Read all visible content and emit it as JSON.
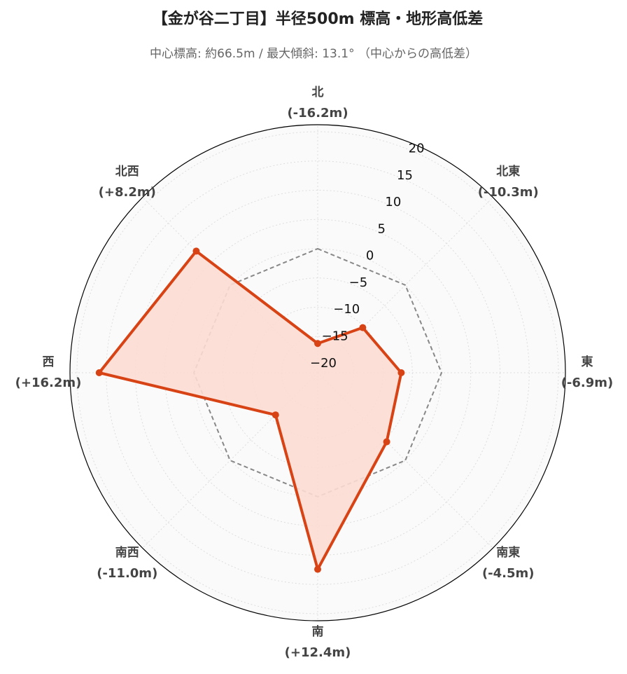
{
  "chart_data": {
    "type": "radar",
    "title": "【金が谷二丁目】半径500m 標高・地形高低差",
    "subtitle": "中心標高: 約66.5m / 最大傾斜: 13.1° （中心からの高低差）",
    "categories": [
      "北",
      "北東",
      "東",
      "南東",
      "南",
      "南西",
      "西",
      "北西"
    ],
    "values": [
      -16.2,
      -10.3,
      -6.9,
      -4.5,
      12.4,
      -11.0,
      16.2,
      8.2
    ],
    "value_labels": [
      "(-16.2m)",
      "(-10.3m)",
      "(-6.9m)",
      "(-4.5m)",
      "(+12.4m)",
      "(-11.0m)",
      "(+16.2m)",
      "(+8.2m)"
    ],
    "color": "#d84315",
    "fill_color": "#fcdcd3",
    "reference": 0,
    "reference_color": "#888888",
    "ylim": [
      -21.2,
      21.2
    ],
    "yticks": [
      {
        "value": -20,
        "label": "−20"
      },
      {
        "value": -15,
        "label": "−15"
      },
      {
        "value": -10,
        "label": "−10"
      },
      {
        "value": -5,
        "label": "−5"
      },
      0,
      5,
      10,
      15,
      20
    ],
    "grid": true
  }
}
